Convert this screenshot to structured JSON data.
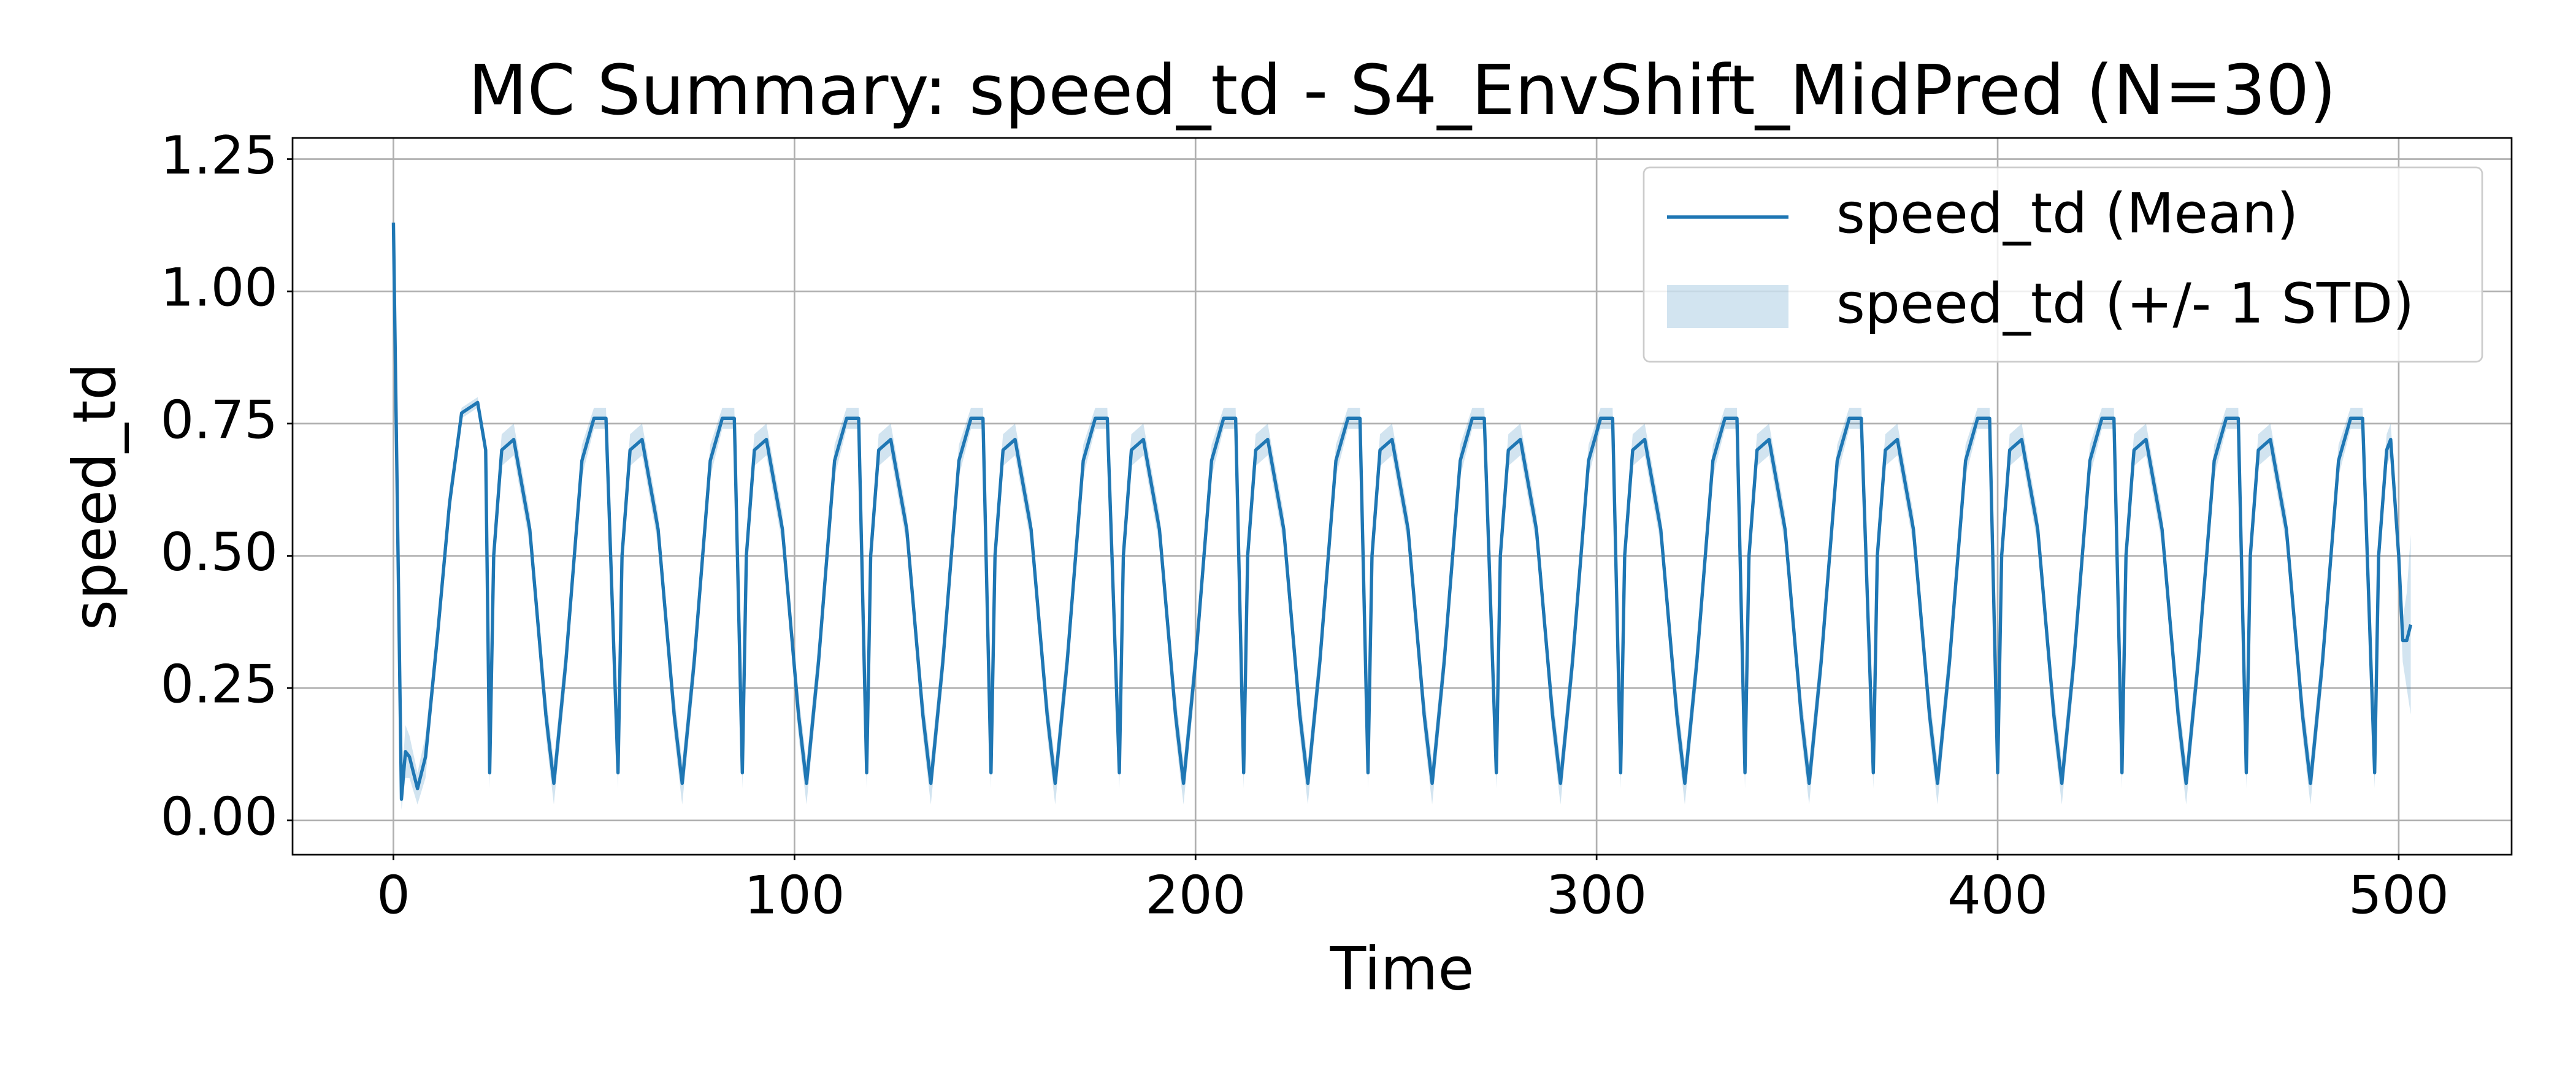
{
  "chart_data": {
    "type": "line",
    "title": "MC Summary: speed_td - S4_EnvShift_MidPred (N=30)",
    "x_label": "Time",
    "y_label": "speed_td",
    "xlim": [
      -25.15,
      528.15
    ],
    "ylim": [
      -0.065,
      1.29
    ],
    "xticks": [
      0,
      100,
      200,
      300,
      400,
      500
    ],
    "yticks": [
      {
        "value": 0,
        "label": "0.00"
      },
      {
        "value": 0.25,
        "label": "0.25"
      },
      {
        "value": 0.5,
        "label": "0.50"
      },
      {
        "value": 0.75,
        "label": "0.75"
      },
      {
        "value": 1,
        "label": "1.00"
      },
      {
        "value": 1.25,
        "label": "1.25"
      }
    ],
    "grid": true,
    "legend": "upper right",
    "x": [
      0,
      2,
      3,
      4,
      6,
      8,
      11,
      14,
      17,
      21,
      23,
      24,
      25,
      27,
      30,
      34,
      38,
      40,
      43,
      47,
      50,
      53,
      56,
      57,
      59,
      62,
      66,
      70,
      72,
      75,
      79,
      82,
      85,
      87,
      88,
      90,
      93,
      97,
      101,
      103,
      106,
      110,
      113,
      116,
      118,
      119,
      121,
      124,
      128,
      132,
      134,
      137,
      141,
      144,
      147,
      149,
      150,
      152,
      155,
      159,
      163,
      165,
      168,
      172,
      175,
      178,
      181,
      182,
      184,
      187,
      191,
      195,
      197,
      200,
      204,
      207,
      210,
      212,
      213,
      215,
      218,
      222,
      226,
      228,
      231,
      235,
      238,
      241,
      243,
      244,
      246,
      249,
      253,
      257,
      259,
      262,
      266,
      269,
      272,
      275,
      276,
      278,
      281,
      285,
      289,
      291,
      294,
      298,
      301,
      304,
      306,
      307,
      309,
      312,
      316,
      320,
      322,
      325,
      329,
      332,
      335,
      337,
      338,
      340,
      343,
      347,
      351,
      353,
      356,
      360,
      363,
      366,
      369,
      370,
      372,
      375,
      379,
      383,
      385,
      388,
      392,
      395,
      398,
      400,
      401,
      403,
      406,
      410,
      414,
      416,
      419,
      423,
      426,
      429,
      431,
      432,
      434,
      437,
      441,
      445,
      447,
      450,
      454,
      457,
      460,
      462,
      463,
      465,
      468,
      472,
      476,
      478,
      481,
      485,
      488,
      491,
      494,
      495,
      497,
      498,
      500,
      501,
      502,
      503
    ],
    "series": [
      {
        "name": "speed_td (Mean)",
        "color": "#1f77b4",
        "values": [
          1.13,
          0.04,
          0.13,
          0.12,
          0.06,
          0.12,
          0.35,
          0.6,
          0.77,
          0.79,
          0.7,
          0.09,
          0.5,
          0.7,
          0.72,
          0.55,
          0.2,
          0.07,
          0.3,
          0.68,
          0.76,
          0.76,
          0.09,
          0.5,
          0.7,
          0.72,
          0.55,
          0.2,
          0.07,
          0.3,
          0.68,
          0.76,
          0.76,
          0.09,
          0.5,
          0.7,
          0.72,
          0.55,
          0.2,
          0.07,
          0.3,
          0.68,
          0.76,
          0.76,
          0.09,
          0.5,
          0.7,
          0.72,
          0.55,
          0.2,
          0.07,
          0.3,
          0.68,
          0.76,
          0.76,
          0.09,
          0.5,
          0.7,
          0.72,
          0.55,
          0.2,
          0.07,
          0.3,
          0.68,
          0.76,
          0.76,
          0.09,
          0.5,
          0.7,
          0.72,
          0.55,
          0.2,
          0.07,
          0.3,
          0.68,
          0.76,
          0.76,
          0.09,
          0.5,
          0.7,
          0.72,
          0.55,
          0.2,
          0.07,
          0.3,
          0.68,
          0.76,
          0.76,
          0.09,
          0.5,
          0.7,
          0.72,
          0.55,
          0.2,
          0.07,
          0.3,
          0.68,
          0.76,
          0.76,
          0.09,
          0.5,
          0.7,
          0.72,
          0.55,
          0.2,
          0.07,
          0.3,
          0.68,
          0.76,
          0.76,
          0.09,
          0.5,
          0.7,
          0.72,
          0.55,
          0.2,
          0.07,
          0.3,
          0.68,
          0.76,
          0.76,
          0.09,
          0.5,
          0.7,
          0.72,
          0.55,
          0.2,
          0.07,
          0.3,
          0.68,
          0.76,
          0.76,
          0.09,
          0.5,
          0.7,
          0.72,
          0.55,
          0.2,
          0.07,
          0.3,
          0.68,
          0.76,
          0.76,
          0.09,
          0.5,
          0.7,
          0.72,
          0.55,
          0.2,
          0.07,
          0.3,
          0.68,
          0.76,
          0.76,
          0.09,
          0.5,
          0.7,
          0.72,
          0.55,
          0.2,
          0.07,
          0.3,
          0.68,
          0.76,
          0.76,
          0.09,
          0.5,
          0.7,
          0.72,
          0.55,
          0.2,
          0.07,
          0.3,
          0.68,
          0.76,
          0.76,
          0.09,
          0.5,
          0.7,
          0.72,
          0.5,
          0.34,
          0.34,
          0.37
        ]
      },
      {
        "name": "speed_td (+/- 1 STD)",
        "color": "#1f77b4",
        "alpha": 0.2,
        "lower": [
          1.12,
          0.02,
          0.08,
          0.08,
          0.03,
          0.08,
          0.32,
          0.57,
          0.76,
          0.78,
          0.68,
          0.06,
          0.46,
          0.67,
          0.69,
          0.52,
          0.16,
          0.03,
          0.26,
          0.65,
          0.74,
          0.74,
          0.06,
          0.46,
          0.67,
          0.69,
          0.52,
          0.16,
          0.03,
          0.26,
          0.65,
          0.74,
          0.74,
          0.06,
          0.46,
          0.67,
          0.69,
          0.52,
          0.16,
          0.03,
          0.26,
          0.65,
          0.74,
          0.74,
          0.06,
          0.46,
          0.67,
          0.69,
          0.52,
          0.16,
          0.03,
          0.26,
          0.65,
          0.74,
          0.74,
          0.06,
          0.46,
          0.67,
          0.69,
          0.52,
          0.16,
          0.03,
          0.26,
          0.65,
          0.74,
          0.74,
          0.06,
          0.46,
          0.67,
          0.69,
          0.52,
          0.16,
          0.03,
          0.26,
          0.65,
          0.74,
          0.74,
          0.06,
          0.46,
          0.67,
          0.69,
          0.52,
          0.16,
          0.03,
          0.26,
          0.65,
          0.74,
          0.74,
          0.06,
          0.46,
          0.67,
          0.69,
          0.52,
          0.16,
          0.03,
          0.26,
          0.65,
          0.74,
          0.74,
          0.06,
          0.46,
          0.67,
          0.69,
          0.52,
          0.16,
          0.03,
          0.26,
          0.65,
          0.74,
          0.74,
          0.06,
          0.46,
          0.67,
          0.69,
          0.52,
          0.16,
          0.03,
          0.26,
          0.65,
          0.74,
          0.74,
          0.06,
          0.46,
          0.67,
          0.69,
          0.52,
          0.16,
          0.03,
          0.26,
          0.65,
          0.74,
          0.74,
          0.06,
          0.46,
          0.67,
          0.69,
          0.52,
          0.16,
          0.03,
          0.26,
          0.65,
          0.74,
          0.74,
          0.06,
          0.46,
          0.67,
          0.69,
          0.52,
          0.16,
          0.03,
          0.26,
          0.65,
          0.74,
          0.74,
          0.06,
          0.46,
          0.67,
          0.69,
          0.52,
          0.16,
          0.03,
          0.26,
          0.65,
          0.74,
          0.74,
          0.06,
          0.46,
          0.67,
          0.69,
          0.52,
          0.16,
          0.03,
          0.26,
          0.65,
          0.74,
          0.74,
          0.06,
          0.46,
          0.67,
          0.69,
          0.47,
          0.3,
          0.25,
          0.2
        ],
        "upper": [
          1.14,
          0.06,
          0.18,
          0.16,
          0.09,
          0.16,
          0.38,
          0.63,
          0.78,
          0.8,
          0.72,
          0.12,
          0.54,
          0.73,
          0.75,
          0.58,
          0.24,
          0.11,
          0.34,
          0.71,
          0.78,
          0.78,
          0.12,
          0.54,
          0.73,
          0.75,
          0.58,
          0.24,
          0.11,
          0.34,
          0.71,
          0.78,
          0.78,
          0.12,
          0.54,
          0.73,
          0.75,
          0.58,
          0.24,
          0.11,
          0.34,
          0.71,
          0.78,
          0.78,
          0.12,
          0.54,
          0.73,
          0.75,
          0.58,
          0.24,
          0.11,
          0.34,
          0.71,
          0.78,
          0.78,
          0.12,
          0.54,
          0.73,
          0.75,
          0.58,
          0.24,
          0.11,
          0.34,
          0.71,
          0.78,
          0.78,
          0.12,
          0.54,
          0.73,
          0.75,
          0.58,
          0.24,
          0.11,
          0.34,
          0.71,
          0.78,
          0.78,
          0.12,
          0.54,
          0.73,
          0.75,
          0.58,
          0.24,
          0.11,
          0.34,
          0.71,
          0.78,
          0.78,
          0.12,
          0.54,
          0.73,
          0.75,
          0.58,
          0.24,
          0.11,
          0.34,
          0.71,
          0.78,
          0.78,
          0.12,
          0.54,
          0.73,
          0.75,
          0.58,
          0.24,
          0.11,
          0.34,
          0.71,
          0.78,
          0.78,
          0.12,
          0.54,
          0.73,
          0.75,
          0.58,
          0.24,
          0.11,
          0.34,
          0.71,
          0.78,
          0.78,
          0.12,
          0.54,
          0.73,
          0.75,
          0.58,
          0.24,
          0.11,
          0.34,
          0.71,
          0.78,
          0.78,
          0.12,
          0.54,
          0.73,
          0.75,
          0.58,
          0.24,
          0.11,
          0.34,
          0.71,
          0.78,
          0.78,
          0.12,
          0.54,
          0.73,
          0.75,
          0.58,
          0.24,
          0.11,
          0.34,
          0.71,
          0.78,
          0.78,
          0.12,
          0.54,
          0.73,
          0.75,
          0.58,
          0.24,
          0.11,
          0.34,
          0.71,
          0.78,
          0.78,
          0.12,
          0.54,
          0.73,
          0.75,
          0.58,
          0.24,
          0.11,
          0.34,
          0.71,
          0.78,
          0.78,
          0.12,
          0.54,
          0.73,
          0.75,
          0.53,
          0.38,
          0.43,
          0.54
        ]
      }
    ]
  }
}
